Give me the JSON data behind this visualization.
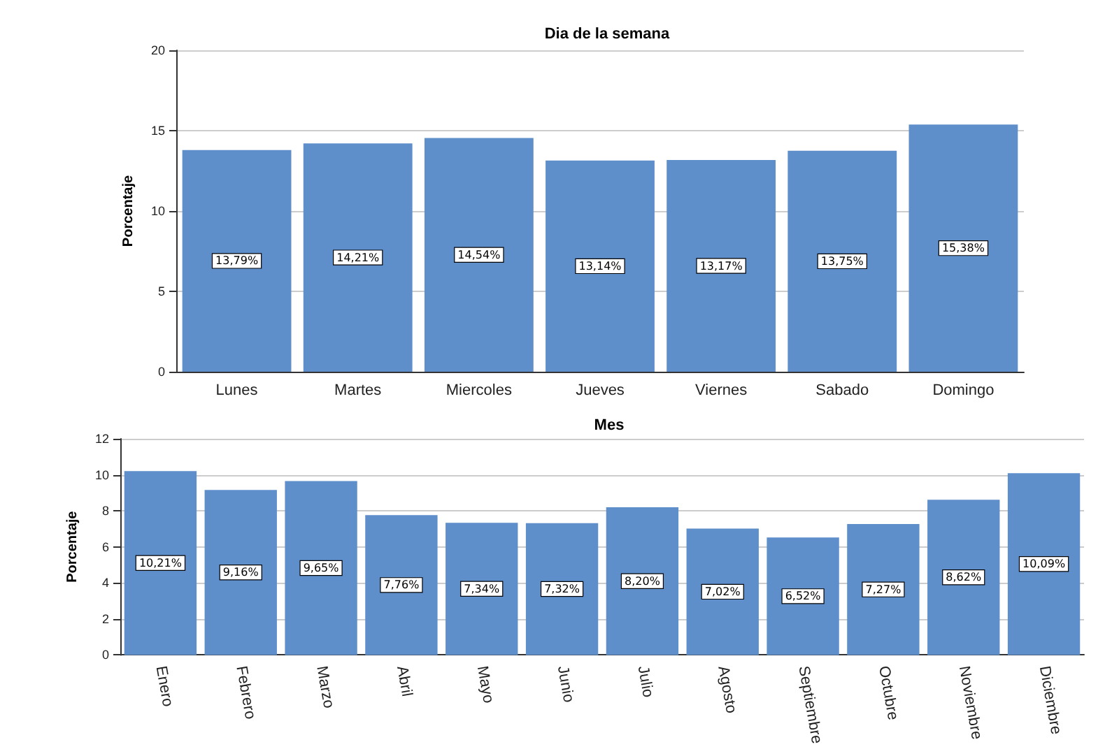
{
  "chart_data": [
    {
      "type": "bar",
      "title": "Dia de la semana",
      "ylabel": "Porcentaje",
      "categories": [
        "Lunes",
        "Martes",
        "Miercoles",
        "Jueves",
        "Viernes",
        "Sabado",
        "Domingo"
      ],
      "values": [
        13.79,
        14.21,
        14.54,
        13.14,
        13.17,
        13.75,
        15.38
      ],
      "value_labels": [
        "13,79%",
        "14,21%",
        "14,54%",
        "13,14%",
        "13,17%",
        "13,75%",
        "15,38%"
      ],
      "color": "#5f8fcb",
      "ylim": [
        0,
        20
      ],
      "yticks": [
        0,
        5,
        10,
        15,
        20
      ],
      "grid": "y"
    },
    {
      "type": "bar",
      "title": "Mes",
      "ylabel": "Porcentaje",
      "categories": [
        "Enero",
        "Febrero",
        "Marzo",
        "Abril",
        "Mayo",
        "Junio",
        "Julio",
        "Agosto",
        "Septiembre",
        "Octubre",
        "Noviembre",
        "Diciembre"
      ],
      "values": [
        10.21,
        9.16,
        9.65,
        7.76,
        7.34,
        7.32,
        8.2,
        7.02,
        6.52,
        7.27,
        8.62,
        10.09
      ],
      "value_labels": [
        "10,21%",
        "9,16%",
        "9,65%",
        "7,76%",
        "7,34%",
        "7,32%",
        "8,20%",
        "7,02%",
        "6,52%",
        "7,27%",
        "8,62%",
        "10,09%"
      ],
      "color": "#5f8fcb",
      "ylim": [
        0,
        12
      ],
      "yticks": [
        0,
        2,
        4,
        6,
        8,
        10,
        12
      ],
      "grid": "y"
    }
  ]
}
